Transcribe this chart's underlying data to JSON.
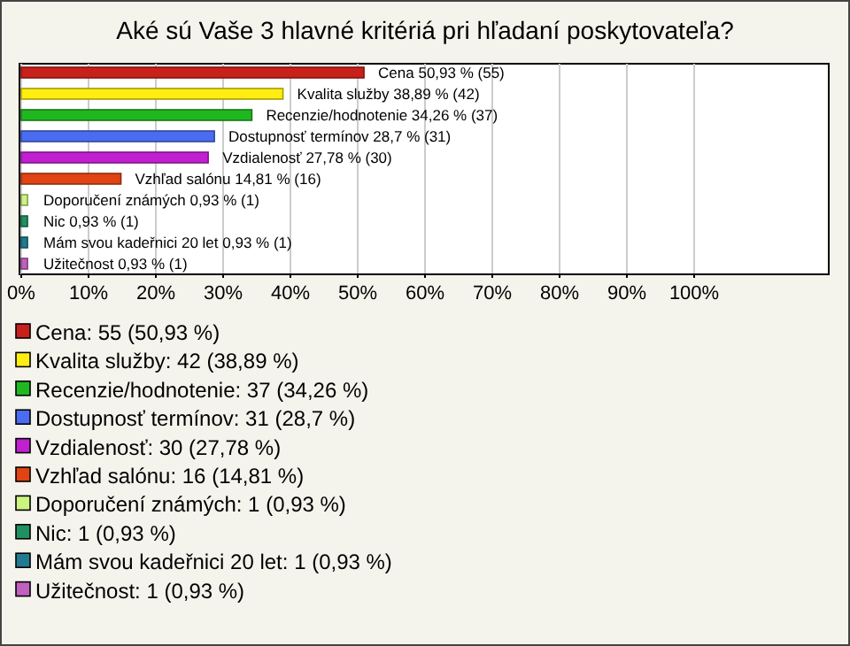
{
  "chart_data": {
    "type": "bar",
    "orientation": "horizontal",
    "stacked": true,
    "title": "Aké sú Vaše 3 hlavné kritériá pri hľadaní poskytovateľa?",
    "categories": [
      null,
      null,
      null,
      null,
      null,
      null,
      null,
      null,
      null,
      null
    ],
    "series": [
      {
        "name": "Cena: 55 (50,93 %)",
        "color": "#c8201a",
        "values": [
          50.93,
          null,
          null,
          null,
          null,
          null,
          null,
          null,
          null,
          null
        ],
        "value_labels": [
          "Cena 50,93 % (55)",
          null,
          null,
          null,
          null,
          null,
          null,
          null,
          null,
          null
        ]
      },
      {
        "name": "Kvalita služby: 42 (38,89 %)",
        "color": "#ffee10",
        "values": [
          null,
          38.89,
          null,
          null,
          null,
          null,
          null,
          null,
          null,
          null
        ],
        "value_labels": [
          null,
          "Kvalita služby 38,89 % (42)",
          null,
          null,
          null,
          null,
          null,
          null,
          null,
          null
        ]
      },
      {
        "name": "Recenzie/hodnotenie: 37 (34,26 %)",
        "color": "#20b820",
        "values": [
          null,
          null,
          34.26,
          null,
          null,
          null,
          null,
          null,
          null,
          null
        ],
        "value_labels": [
          null,
          null,
          "Recenzie/hodnotenie 34,26 % (37)",
          null,
          null,
          null,
          null,
          null,
          null,
          null
        ]
      },
      {
        "name": "Dostupnosť termínov: 31 (28,7 %)",
        "color": "#4a6cf0",
        "values": [
          null,
          null,
          null,
          28.7,
          null,
          null,
          null,
          null,
          null,
          null
        ],
        "value_labels": [
          null,
          null,
          null,
          "Dostupnosť termínov 28,7 % (31)",
          null,
          null,
          null,
          null,
          null,
          null
        ]
      },
      {
        "name": "Vzdialenosť: 30 (27,78 %)",
        "color": "#c020d0",
        "values": [
          null,
          null,
          null,
          null,
          27.78,
          null,
          null,
          null,
          null,
          null
        ],
        "value_labels": [
          null,
          null,
          null,
          null,
          "Vzdialenosť 27,78 % (30)",
          null,
          null,
          null,
          null,
          null
        ]
      },
      {
        "name": "Vzhľad salónu: 16 (14,81 %)",
        "color": "#e04412",
        "values": [
          null,
          null,
          null,
          null,
          null,
          14.81,
          null,
          null,
          null,
          null
        ],
        "value_labels": [
          null,
          null,
          null,
          null,
          null,
          "Vzhľad salónu 14,81 % (16)",
          null,
          null,
          null,
          null
        ]
      },
      {
        "name": "Doporučení známých: 1 (0,93 %)",
        "color": "#ccf480",
        "values": [
          null,
          null,
          null,
          null,
          null,
          null,
          0.93,
          null,
          null,
          null
        ],
        "value_labels": [
          null,
          null,
          null,
          null,
          null,
          null,
          "Doporučení známých 0,93 % (1)",
          null,
          null,
          null
        ]
      },
      {
        "name": "Nic: 1 (0,93 %)",
        "color": "#209060",
        "values": [
          null,
          null,
          null,
          null,
          null,
          null,
          null,
          0.93,
          null,
          null
        ],
        "value_labels": [
          null,
          null,
          null,
          null,
          null,
          null,
          null,
          "Nic 0,93 % (1)",
          null,
          null
        ]
      },
      {
        "name": "Mám svou kadeřnici 20 let: 1 (0,93 %)",
        "color": "#207a90",
        "values": [
          null,
          null,
          null,
          null,
          null,
          null,
          null,
          null,
          0.93,
          null
        ],
        "value_labels": [
          null,
          null,
          null,
          null,
          null,
          null,
          null,
          null,
          "Mám svou kadeřnici 20 let 0,93 % (1)",
          null
        ]
      },
      {
        "name": "Užitečnost: 1 (0,93 %)",
        "color": "#c060c0",
        "values": [
          null,
          null,
          null,
          null,
          null,
          null,
          null,
          null,
          null,
          0.93
        ],
        "value_labels": [
          null,
          null,
          null,
          null,
          null,
          null,
          null,
          null,
          null,
          "Užitečnost 0,93 % (1)"
        ]
      }
    ],
    "xlim": [
      0,
      120
    ],
    "xticks": [
      {
        "value": 0,
        "label": "0%"
      },
      {
        "value": 10,
        "label": "10%"
      },
      {
        "value": 20,
        "label": "20%"
      },
      {
        "value": 30,
        "label": "30%"
      },
      {
        "value": 40,
        "label": "40%"
      },
      {
        "value": 50,
        "label": "50%"
      },
      {
        "value": 60,
        "label": "60%"
      },
      {
        "value": 70,
        "label": "70%"
      },
      {
        "value": 80,
        "label": "80%"
      },
      {
        "value": 90,
        "label": "90%"
      },
      {
        "value": 100,
        "label": "100%"
      }
    ],
    "grid": "x",
    "legend": "bottom",
    "tick_labels": "x"
  }
}
